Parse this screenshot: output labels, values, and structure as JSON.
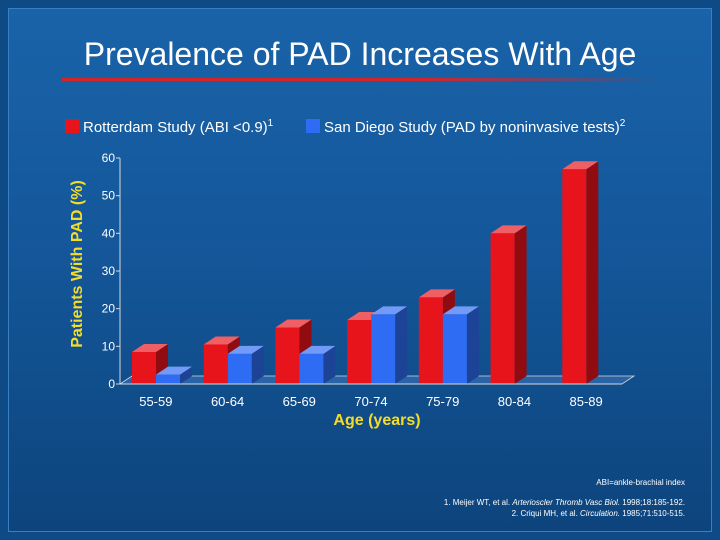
{
  "chart_data": {
    "type": "bar",
    "title": "Prevalence of PAD Increases With Age",
    "xlabel": "Age (years)",
    "ylabel": "Patients With PAD (%)",
    "ylim": [
      0,
      60
    ],
    "yticks": [
      "0",
      "10",
      "20",
      "30",
      "40",
      "50",
      "60"
    ],
    "categories": [
      "55-59",
      "60-64",
      "65-69",
      "70-74",
      "75-79",
      "80-84",
      "85-89"
    ],
    "series": [
      {
        "name": "Rotterdam Study (ABI <0.9)",
        "superscript": "1",
        "color": "#e8141b",
        "values": [
          8.5,
          10.5,
          15,
          17,
          23,
          40,
          57
        ]
      },
      {
        "name": "San Diego Study (PAD by noninvasive tests)",
        "superscript": "2",
        "color": "#2f6cf4",
        "values": [
          2.5,
          8,
          8,
          18.5,
          18.5,
          null,
          null
        ]
      }
    ],
    "grid": false,
    "legend_position": "top"
  },
  "footnotes": {
    "abbreviation": "ABI=ankle-brachial index",
    "refs": [
      {
        "before": "1. Meijer WT, et al. ",
        "italic": "Arterioscler Thromb Vasc Biol.",
        "after": " 1998;18:185-192."
      },
      {
        "before": "2. Criqui MH, et al. ",
        "italic": "Circulation.",
        "after": " 1985;71:510-515."
      }
    ]
  },
  "colors": {
    "background": "#14579a",
    "axis_label": "#f4dc2a",
    "title_rule": "#d3262b"
  }
}
